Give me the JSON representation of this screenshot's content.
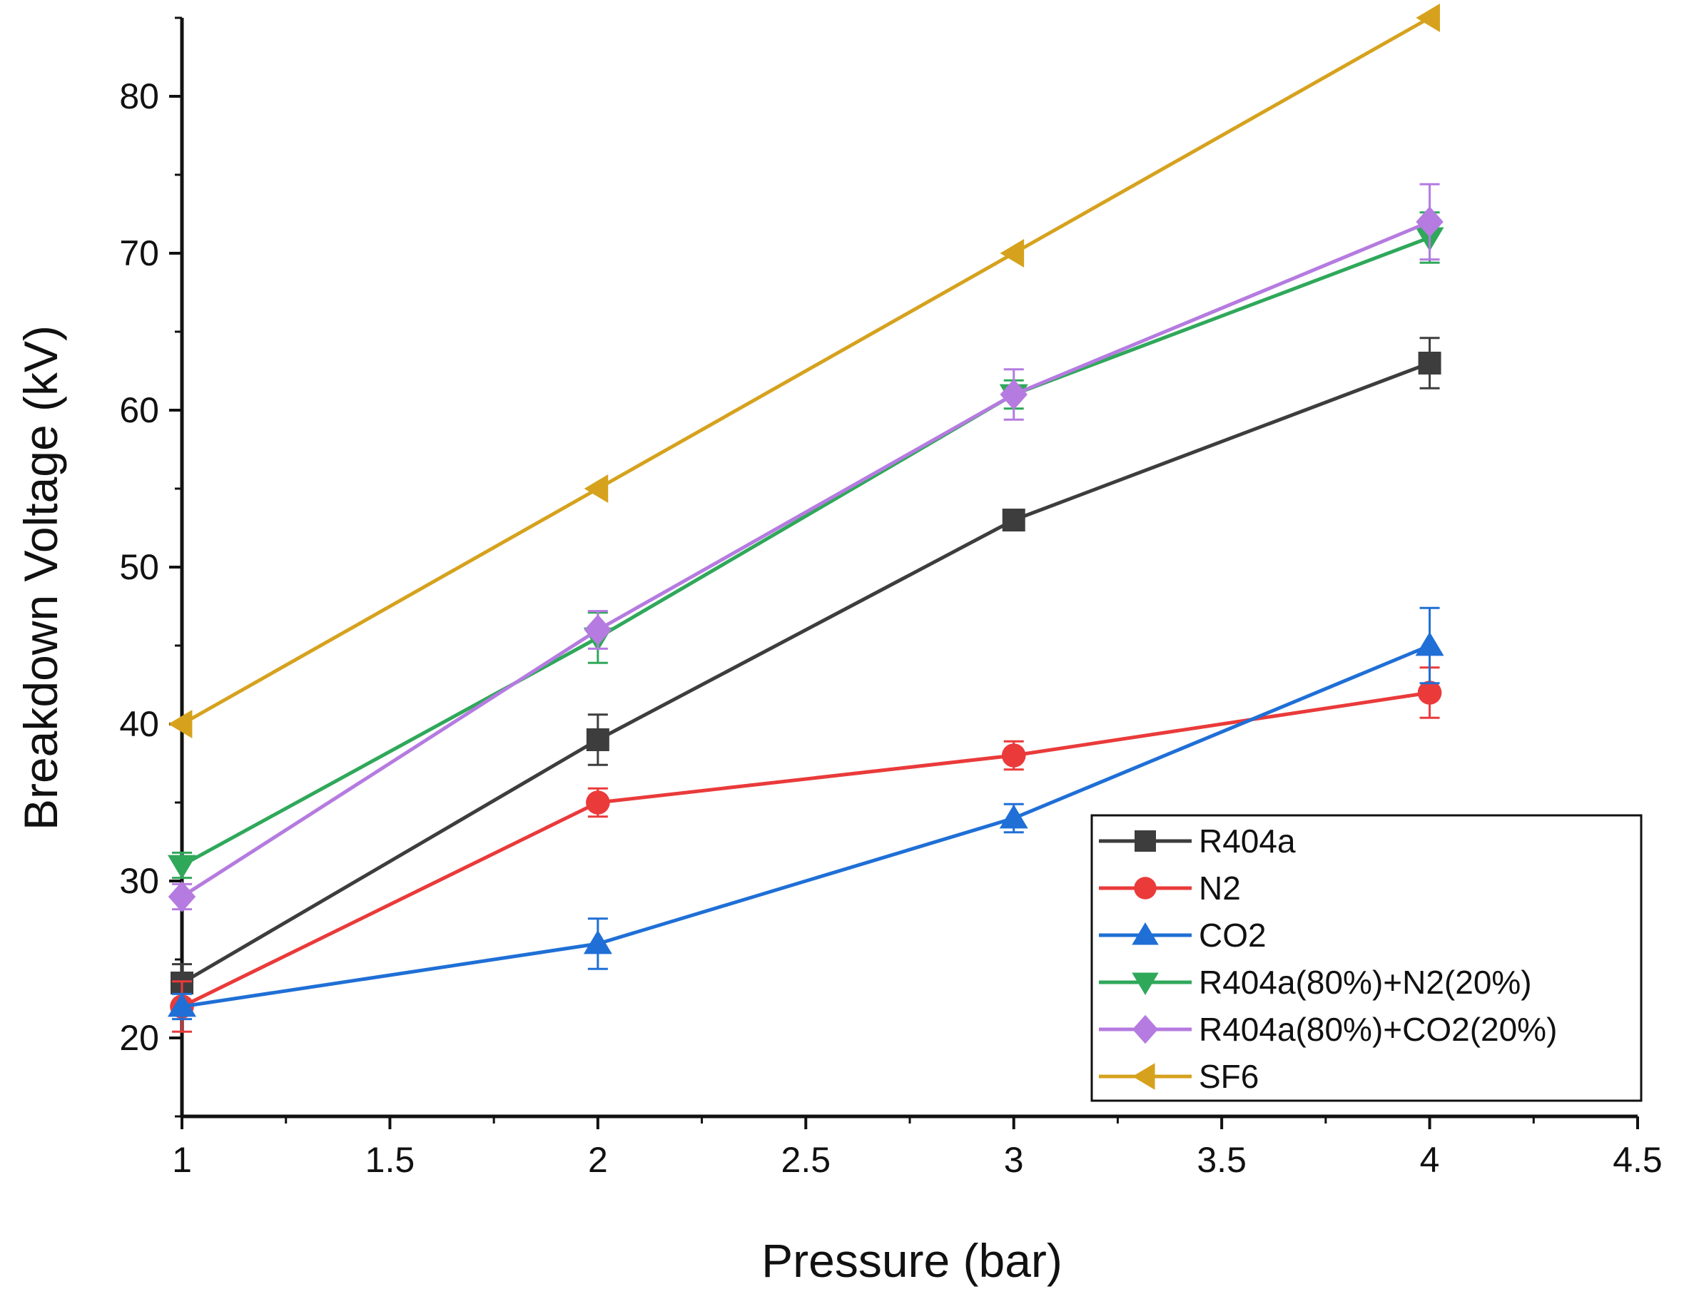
{
  "chart_data": {
    "type": "line",
    "title": "",
    "xlabel": "Pressure (bar)",
    "ylabel": "Breakdown Voltage (kV)",
    "xlim": [
      1,
      4.5
    ],
    "ylim": [
      15,
      85
    ],
    "x_ticks": [
      1,
      1.5,
      2,
      2.5,
      3,
      3.5,
      4,
      4.5
    ],
    "x_tick_labels": [
      "1",
      "1.5",
      "2",
      "2.5",
      "3",
      "3.5",
      "4",
      "4.5"
    ],
    "y_ticks": [
      20,
      30,
      40,
      50,
      60,
      70,
      80
    ],
    "y_tick_labels": [
      "20",
      "30",
      "40",
      "50",
      "60",
      "70",
      "80"
    ],
    "grid": false,
    "legend_position": "bottom-right",
    "x": [
      1,
      2,
      3,
      4
    ],
    "series": [
      {
        "name": "R404a",
        "color": "#3d3d3d",
        "marker": "square",
        "values": [
          23.5,
          39,
          53,
          63
        ],
        "errors": [
          1.2,
          1.6,
          0.6,
          1.6
        ]
      },
      {
        "name": "N2",
        "color": "#ea3a3a",
        "marker": "circle",
        "values": [
          22,
          35,
          38,
          42
        ],
        "errors": [
          1.6,
          0.9,
          0.9,
          1.6
        ]
      },
      {
        "name": "CO2",
        "color": "#1f6fd6",
        "marker": "triangle-up",
        "values": [
          22,
          26,
          34,
          45
        ],
        "errors": [
          0.8,
          1.6,
          0.9,
          2.4
        ]
      },
      {
        "name": "R404a(80%)+N2(20%)",
        "color": "#2fa85a",
        "marker": "triangle-down",
        "values": [
          31,
          45.5,
          61,
          71
        ],
        "errors": [
          0.8,
          1.6,
          0.9,
          1.6
        ]
      },
      {
        "name": "R404a(80%)+CO2(20%)",
        "color": "#b57be0",
        "marker": "diamond",
        "values": [
          29,
          46,
          61,
          72
        ],
        "errors": [
          0.8,
          1.2,
          1.6,
          2.4
        ]
      },
      {
        "name": "SF6",
        "color": "#d6a21d",
        "marker": "triangle-left",
        "values": [
          40,
          55,
          70,
          85
        ],
        "errors": [
          0,
          0,
          0,
          0
        ]
      }
    ]
  }
}
